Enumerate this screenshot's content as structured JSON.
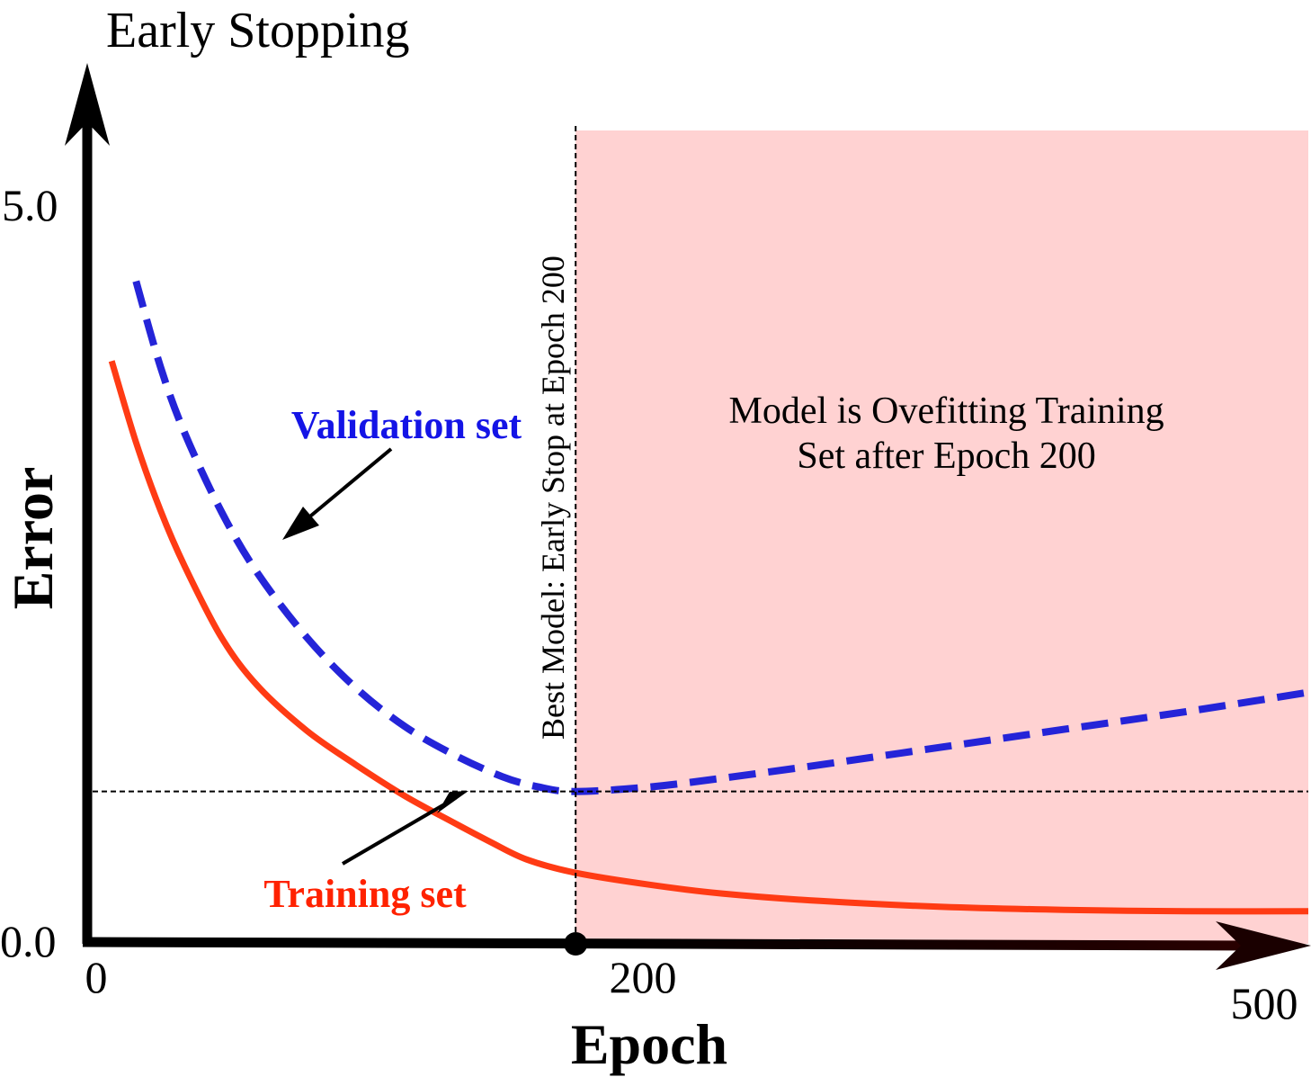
{
  "chart_data": {
    "type": "line",
    "title": "Early Stopping",
    "xlabel": "Epoch",
    "ylabel": "Error",
    "xlim": [
      0,
      500
    ],
    "ylim": [
      0.0,
      5.0
    ],
    "x_ticks": [
      {
        "value": 0,
        "label": "0"
      },
      {
        "value": 200,
        "label": "200"
      },
      {
        "value": 500,
        "label": "500"
      }
    ],
    "y_ticks": [
      {
        "value": 0.0,
        "label": "0.0"
      },
      {
        "value": 5.0,
        "label": "5.0"
      }
    ],
    "series": [
      {
        "name": "Training set",
        "color": "#ff3b14",
        "style": "solid",
        "x": [
          10,
          20,
          30,
          40,
          55,
          70,
          90,
          110,
          130,
          150,
          165,
          180,
          200,
          230,
          260,
          300,
          350,
          400,
          450,
          500
        ],
        "y": [
          3.94,
          3.39,
          2.93,
          2.55,
          2.07,
          1.74,
          1.44,
          1.21,
          1.0,
          0.82,
          0.69,
          0.57,
          0.48,
          0.4,
          0.34,
          0.29,
          0.25,
          0.23,
          0.22,
          0.22
        ]
      },
      {
        "name": "Validation set",
        "color": "#2424d8",
        "style": "dashed",
        "x": [
          20,
          30,
          40,
          55,
          70,
          90,
          110,
          130,
          150,
          170,
          185,
          200,
          230,
          260,
          300,
          350,
          400,
          450,
          500
        ],
        "y": [
          4.48,
          3.9,
          3.45,
          2.92,
          2.5,
          2.07,
          1.73,
          1.47,
          1.28,
          1.13,
          1.06,
          1.03,
          1.06,
          1.12,
          1.21,
          1.33,
          1.45,
          1.57,
          1.7
        ]
      }
    ],
    "reference_lines": [
      {
        "orientation": "vertical",
        "x": 200,
        "style": "dotted",
        "label": "Best Model: Early Stop at Epoch 200"
      },
      {
        "orientation": "horizontal",
        "y": 1.03,
        "style": "dotted"
      }
    ],
    "shaded_region": {
      "x_from": 200,
      "x_to": 500,
      "color": "#ffd2d2",
      "label_lines": [
        "Model is Ovefitting Training",
        "Set after Epoch 200"
      ]
    },
    "annotations": [
      {
        "text": "Validation set",
        "color": "#1414e6",
        "target_series": "Validation set",
        "target_x": 70
      },
      {
        "text": "Training set",
        "color": "#ff2200",
        "target_series": "Training set",
        "target_x": 155
      }
    ],
    "grid": false,
    "legend": "none"
  }
}
